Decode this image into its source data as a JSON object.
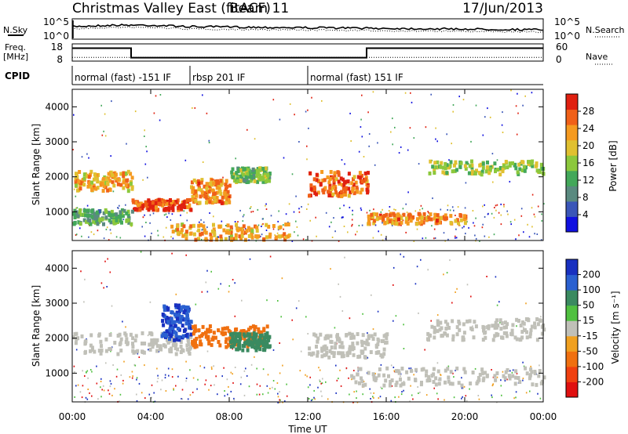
{
  "header": {
    "title": "Christmas Valley East (fitACF)",
    "beam": "Beam 11",
    "date": "17/Jun/2013"
  },
  "noise_panel": {
    "left_label": "N.Sky",
    "right_label": "N.Search",
    "left_ticks": [
      "10^5",
      "10^0"
    ],
    "right_ticks": [
      "10^5",
      "10^0"
    ]
  },
  "freq_panel": {
    "left_label_1": "Freq.",
    "left_label_2": "[MHz]",
    "right_label": "Nave",
    "left_ticks": [
      "18",
      "8"
    ],
    "right_ticks": [
      "60",
      "0"
    ],
    "freq_values": [
      [
        0,
        15.5
      ],
      [
        3,
        15.5
      ],
      [
        3,
        10.0
      ],
      [
        15,
        10.0
      ],
      [
        15,
        15.5
      ],
      [
        24,
        15.5
      ]
    ],
    "nave_values": [
      [
        0,
        13
      ],
      [
        24,
        13
      ]
    ]
  },
  "cpid": {
    "label": "CPID",
    "segments": [
      {
        "start": 0,
        "end": 6,
        "label": "normal (fast) -151 IF"
      },
      {
        "start": 6,
        "end": 12,
        "label": "rbsp 201 IF"
      },
      {
        "start": 12,
        "end": 24,
        "label": "normal (fast) 151 IF"
      }
    ]
  },
  "axes": {
    "x_ticks": [
      "00:00",
      "04:00",
      "08:00",
      "12:00",
      "16:00",
      "20:00",
      "00:00"
    ],
    "x_label": "Time UT",
    "y_ticks": [
      "1000",
      "2000",
      "3000",
      "4000"
    ],
    "y_label": "Slant Range [km]"
  },
  "power_colorbar": {
    "title": "Power [dB]",
    "ticks": [
      "4",
      "8",
      "12",
      "16",
      "20",
      "24",
      "28"
    ],
    "colors": [
      "#1010e0",
      "#3a56b8",
      "#5a8a80",
      "#43a85a",
      "#8cc83c",
      "#e0c030",
      "#f59a20",
      "#f06018",
      "#e02010"
    ]
  },
  "velocity_colorbar": {
    "title": "Velocity [m s⁻¹]",
    "ticks": [
      "200",
      "100",
      "50",
      "15",
      "-15",
      "-50",
      "-100",
      "-200"
    ],
    "colors": [
      "#1830c0",
      "#2a60d0",
      "#3a8a60",
      "#50c040",
      "#c0c0b8",
      "#f0a020",
      "#f07010",
      "#f04010",
      "#e01010"
    ]
  },
  "chart_data": {
    "type": "heatmap",
    "title": "Christmas Valley East (fitACF)",
    "xlabel": "Time UT",
    "ylabel": "Slant Range [km]",
    "xlim": [
      0,
      24
    ],
    "ylim": [
      180,
      4500
    ],
    "power_bands": [
      {
        "t0": 0,
        "t1": 3,
        "r0": 1650,
        "r1": 2200,
        "db": 22
      },
      {
        "t0": 3,
        "t1": 6,
        "r0": 1100,
        "r1": 1400,
        "db": 28
      },
      {
        "t0": 6,
        "t1": 8,
        "r0": 1300,
        "r1": 2000,
        "db": 24
      },
      {
        "t0": 8,
        "t1": 10,
        "r0": 1900,
        "r1": 2300,
        "db": 14
      },
      {
        "t0": 0,
        "t1": 3,
        "r0": 700,
        "r1": 1100,
        "db": 12
      },
      {
        "t0": 5,
        "t1": 11,
        "r0": 250,
        "r1": 700,
        "db": 22
      },
      {
        "t0": 12,
        "t1": 15,
        "r0": 1500,
        "r1": 2200,
        "db": 26
      },
      {
        "t0": 15,
        "t1": 20,
        "r0": 700,
        "r1": 1000,
        "db": 24
      },
      {
        "t0": 18,
        "t1": 24,
        "r0": 2100,
        "r1": 2500,
        "db": 16
      }
    ],
    "velocity_bands": [
      {
        "t0": 0,
        "t1": 6,
        "r0": 1600,
        "r1": 2200,
        "v": 0
      },
      {
        "t0": 4.5,
        "t1": 6,
        "r0": 2000,
        "r1": 3000,
        "v": 150
      },
      {
        "t0": 6,
        "t1": 10,
        "r0": 1800,
        "r1": 2400,
        "v": -60
      },
      {
        "t0": 8,
        "t1": 10,
        "r0": 1700,
        "r1": 2200,
        "v": 40
      },
      {
        "t0": 12,
        "t1": 16,
        "r0": 1500,
        "r1": 2200,
        "v": 0
      },
      {
        "t0": 14,
        "t1": 24,
        "r0": 700,
        "r1": 1200,
        "v": 0
      },
      {
        "t0": 18,
        "t1": 24,
        "r0": 2000,
        "r1": 2600,
        "v": 0
      }
    ]
  }
}
